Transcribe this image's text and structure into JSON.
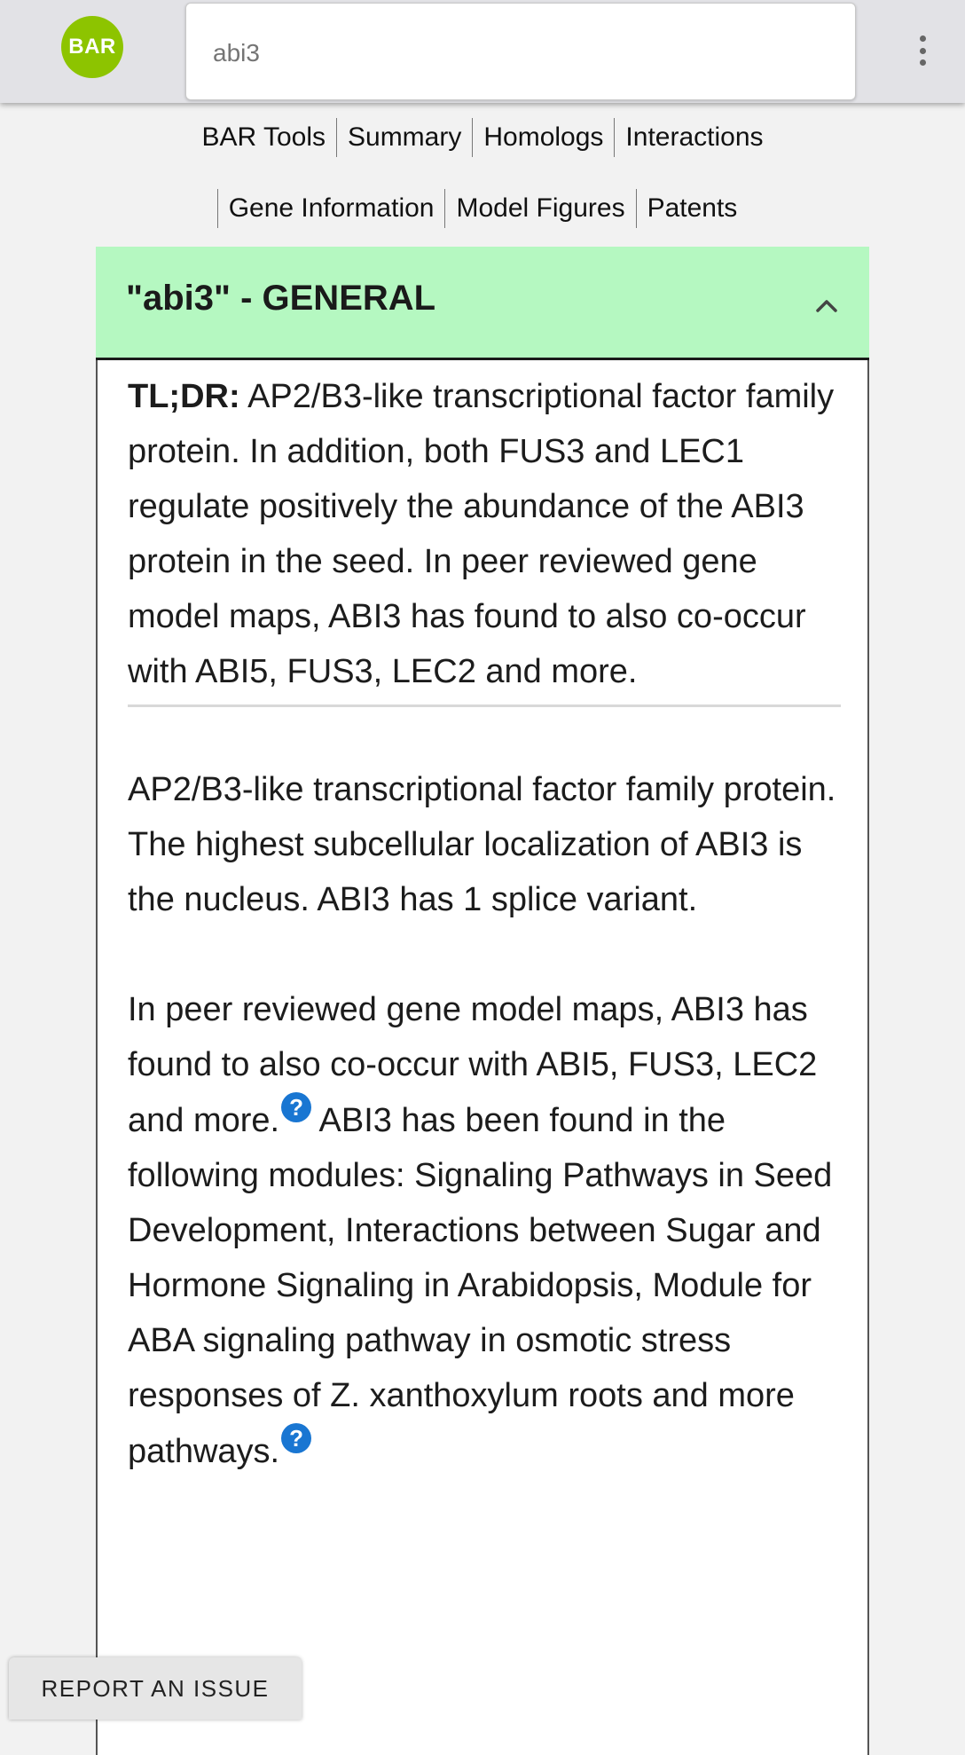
{
  "header": {
    "logo_text": "BAR",
    "logo_color": "#8dc400",
    "search": {
      "value": "",
      "placeholder": "abi3"
    },
    "menu_icon": "kebab-menu-icon"
  },
  "nav": {
    "row1": [
      "BAR Tools",
      "Summary",
      "Homologs",
      "Interactions"
    ],
    "row2": [
      "Gene Information",
      "Model Figures",
      "Patents"
    ]
  },
  "panel": {
    "title": "\"abi3\" - GENERAL",
    "header_color": "#b5f8c1",
    "toggle_icon": "chevron-up-icon",
    "tldr_label": "TL;DR:",
    "tldr_text": " AP2/B3-like transcriptional factor family protein. In addition, both FUS3 and LEC1 regulate positively the abundance of the ABI3 protein in the seed. In peer reviewed gene model maps, ABI3 has found to also co-occur with ABI5, FUS3, LEC2 and more.",
    "paragraph1": "AP2/B3-like transcriptional factor family protein. The highest subcellular localization of ABI3 is the nucleus. ABI3 has 1 splice variant.",
    "paragraph2_part1": "In peer reviewed gene model maps, ABI3 has found to also co-occur with ABI5, FUS3, LEC2 and more.",
    "paragraph2_part2": " ABI3 has been found in the following modules: Signaling Pathways in Seed Development, Interactions between Sugar and Hormone Signaling in Arabidopsis, Module for ABA signaling pathway in osmotic stress responses of Z. xanthoxylum roots and more pathways.",
    "help_glyph": "?",
    "help_color": "#1976d2"
  },
  "footer": {
    "report_label": "REPORT AN ISSUE"
  }
}
